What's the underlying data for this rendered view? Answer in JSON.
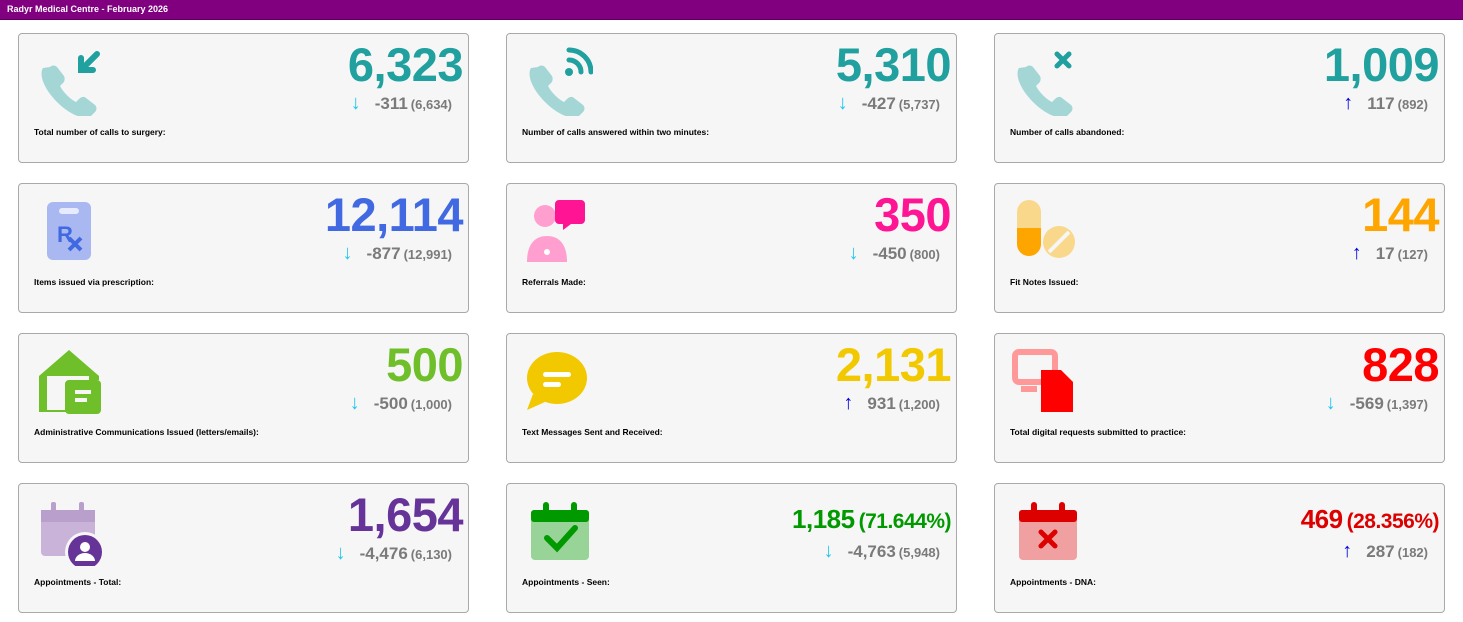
{
  "header": {
    "title": "Radyr Medical Centre - February 2026"
  },
  "colors": {
    "up_arrow": "#0000dd",
    "down_arrow": "#1ec8f0",
    "header_bg": "#800080"
  },
  "cards": [
    {
      "label": "Total number of calls to surgery:",
      "value": "6,323",
      "percent": "",
      "delta": "-311",
      "previous": "(6,634)",
      "trend": "down",
      "color": "#20a09e",
      "icon": "phone-incoming-icon"
    },
    {
      "label": "Number of calls answered within two minutes:",
      "value": "5,310",
      "percent": "",
      "delta": "-427",
      "previous": "(5,737)",
      "trend": "down",
      "color": "#20a09e",
      "icon": "phone-answered-icon"
    },
    {
      "label": "Number of calls abandoned:",
      "value": "1,009",
      "percent": "",
      "delta": "117",
      "previous": "(892)",
      "trend": "up",
      "color": "#20a09e",
      "icon": "phone-missed-icon"
    },
    {
      "label": "Items issued via prescription:",
      "value": "12,114",
      "percent": "",
      "delta": "-877",
      "previous": "(12,991)",
      "trend": "down",
      "color": "#4169e1",
      "icon": "prescription-icon"
    },
    {
      "label": "Referrals Made:",
      "value": "350",
      "percent": "",
      "delta": "-450",
      "previous": "(800)",
      "trend": "down",
      "color": "#ff1493",
      "icon": "referral-icon"
    },
    {
      "label": "Fit Notes Issued:",
      "value": "144",
      "percent": "",
      "delta": "17",
      "previous": "(127)",
      "trend": "up",
      "color": "#ffa500",
      "icon": "pills-icon"
    },
    {
      "label": "Administrative Communications Issued (letters/emails):",
      "value": "500",
      "percent": "",
      "delta": "-500",
      "previous": "(1,000)",
      "trend": "down",
      "color": "#6fbf2a",
      "icon": "mail-house-icon"
    },
    {
      "label": "Text Messages Sent and Received:",
      "value": "2,131",
      "percent": "",
      "delta": "931",
      "previous": "(1,200)",
      "trend": "up",
      "color": "#f2c800",
      "icon": "chat-bubble-icon"
    },
    {
      "label": "Total digital requests submitted to practice:",
      "value": "828",
      "percent": "",
      "delta": "-569",
      "previous": "(1,397)",
      "trend": "down",
      "color": "#ff0000",
      "icon": "digital-request-icon"
    },
    {
      "label": "Appointments - Total:",
      "value": "1,654",
      "percent": "",
      "delta": "-4,476",
      "previous": "(6,130)",
      "trend": "down",
      "color": "#663399",
      "icon": "calendar-user-icon"
    },
    {
      "label": "Appointments - Seen:",
      "value": "1,185",
      "percent": "(71.644%)",
      "delta": "-4,763",
      "previous": "(5,948)",
      "trend": "down",
      "color": "#009900",
      "icon": "calendar-check-icon"
    },
    {
      "label": "Appointments - DNA:",
      "value": "469",
      "percent": "(28.356%)",
      "delta": "287",
      "previous": "(182)",
      "trend": "up",
      "color": "#dd0000",
      "icon": "calendar-x-icon"
    }
  ]
}
